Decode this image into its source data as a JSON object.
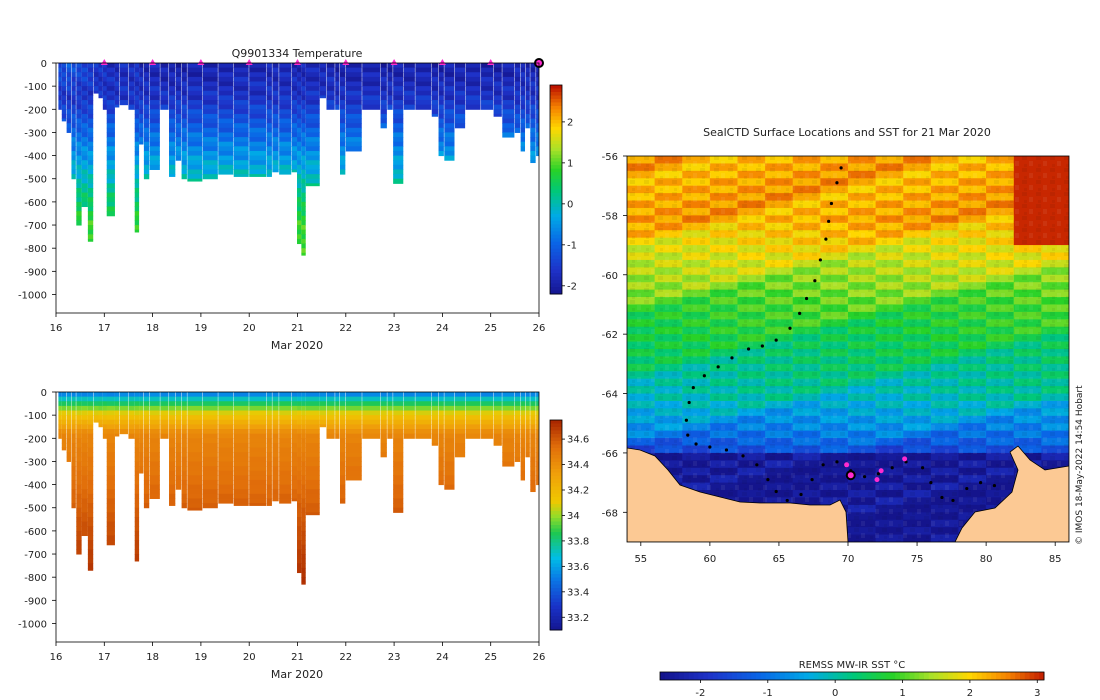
{
  "chart_data": [
    {
      "type": "heatmap",
      "id": "temperature",
      "title": "Q9901334  Temperature",
      "xlabel": "Mar 2020",
      "ylabel": "",
      "xlim": [
        16,
        26
      ],
      "ylim": [
        -1080,
        0
      ],
      "xticks": [
        16,
        17,
        18,
        19,
        20,
        21,
        22,
        23,
        24,
        25,
        26
      ],
      "yticks": [
        0,
        -100,
        -200,
        -300,
        -400,
        -500,
        -600,
        -700,
        -800,
        -900,
        -1000
      ],
      "colorbar": {
        "min": -2.2,
        "max": 2.9,
        "ticks": [
          -2,
          -1,
          0,
          1,
          2
        ]
      },
      "markers_x": [
        17,
        18,
        19,
        20,
        21,
        22,
        23,
        24,
        25,
        26
      ],
      "profiles": [
        {
          "x": 16.05,
          "w": 0.06,
          "bottom": -200,
          "surface": -1.2
        },
        {
          "x": 16.12,
          "w": 0.08,
          "bottom": -250,
          "surface": -1.2
        },
        {
          "x": 16.22,
          "w": 0.08,
          "bottom": -300,
          "surface": -1.1
        },
        {
          "x": 16.32,
          "w": 0.08,
          "bottom": -500,
          "surface": -1.2
        },
        {
          "x": 16.42,
          "w": 0.1,
          "bottom": -700,
          "surface": -1.3
        },
        {
          "x": 16.53,
          "w": 0.12,
          "bottom": -620,
          "surface": -1.3
        },
        {
          "x": 16.66,
          "w": 0.1,
          "bottom": -770,
          "surface": -1.4
        },
        {
          "x": 16.78,
          "w": 0.1,
          "bottom": -130,
          "surface": -1.6
        },
        {
          "x": 16.88,
          "w": 0.08,
          "bottom": -150,
          "surface": -1.6
        },
        {
          "x": 16.97,
          "w": 0.08,
          "bottom": -200,
          "surface": -1.6
        },
        {
          "x": 17.05,
          "w": 0.16,
          "bottom": -660,
          "surface": -1.7
        },
        {
          "x": 17.22,
          "w": 0.08,
          "bottom": -190,
          "surface": -1.7
        },
        {
          "x": 17.32,
          "w": 0.16,
          "bottom": -180,
          "surface": -1.7
        },
        {
          "x": 17.5,
          "w": 0.12,
          "bottom": -200,
          "surface": -1.7
        },
        {
          "x": 17.63,
          "w": 0.08,
          "bottom": -730,
          "surface": -1.6
        },
        {
          "x": 17.72,
          "w": 0.08,
          "bottom": -350,
          "surface": -1.8
        },
        {
          "x": 17.82,
          "w": 0.1,
          "bottom": -500,
          "surface": -1.8
        },
        {
          "x": 17.94,
          "w": 0.2,
          "bottom": -460,
          "surface": -1.8
        },
        {
          "x": 18.16,
          "w": 0.16,
          "bottom": -200,
          "surface": -1.9
        },
        {
          "x": 18.34,
          "w": 0.12,
          "bottom": -490,
          "surface": -1.9
        },
        {
          "x": 18.48,
          "w": 0.1,
          "bottom": -420,
          "surface": -1.9
        },
        {
          "x": 18.6,
          "w": 0.1,
          "bottom": -500,
          "surface": -1.9
        },
        {
          "x": 18.72,
          "w": 0.3,
          "bottom": -510,
          "surface": -1.9
        },
        {
          "x": 19.04,
          "w": 0.3,
          "bottom": -500,
          "surface": -1.9
        },
        {
          "x": 19.36,
          "w": 0.3,
          "bottom": -480,
          "surface": -1.9
        },
        {
          "x": 19.68,
          "w": 0.3,
          "bottom": -490,
          "surface": -1.8
        },
        {
          "x": 20.0,
          "w": 0.34,
          "bottom": -490,
          "surface": -1.8
        },
        {
          "x": 20.36,
          "w": 0.1,
          "bottom": -490,
          "surface": -1.8
        },
        {
          "x": 20.48,
          "w": 0.12,
          "bottom": -470,
          "surface": -1.8
        },
        {
          "x": 20.62,
          "w": 0.24,
          "bottom": -480,
          "surface": -1.8
        },
        {
          "x": 20.88,
          "w": 0.1,
          "bottom": -470,
          "surface": -1.8
        },
        {
          "x": 20.99,
          "w": 0.08,
          "bottom": -780,
          "surface": -1.8
        },
        {
          "x": 21.08,
          "w": 0.08,
          "bottom": -830,
          "surface": -1.8
        },
        {
          "x": 21.17,
          "w": 0.28,
          "bottom": -530,
          "surface": -1.8
        },
        {
          "x": 21.46,
          "w": 0.12,
          "bottom": -150,
          "surface": -1.8
        },
        {
          "x": 21.6,
          "w": 0.16,
          "bottom": -200,
          "surface": -1.8
        },
        {
          "x": 21.78,
          "w": 0.08,
          "bottom": -200,
          "surface": -1.9
        },
        {
          "x": 21.88,
          "w": 0.1,
          "bottom": -480,
          "surface": -1.9
        },
        {
          "x": 22.0,
          "w": 0.32,
          "bottom": -380,
          "surface": -1.9
        },
        {
          "x": 22.34,
          "w": 0.36,
          "bottom": -200,
          "surface": -1.9
        },
        {
          "x": 22.72,
          "w": 0.12,
          "bottom": -280,
          "surface": -1.9
        },
        {
          "x": 22.86,
          "w": 0.1,
          "bottom": -200,
          "surface": -1.9
        },
        {
          "x": 22.98,
          "w": 0.2,
          "bottom": -520,
          "surface": -1.9
        },
        {
          "x": 23.2,
          "w": 0.22,
          "bottom": -200,
          "surface": -1.9
        },
        {
          "x": 23.44,
          "w": 0.32,
          "bottom": -200,
          "surface": -1.9
        },
        {
          "x": 23.78,
          "w": 0.12,
          "bottom": -230,
          "surface": -1.9
        },
        {
          "x": 23.92,
          "w": 0.1,
          "bottom": -400,
          "surface": -1.9
        },
        {
          "x": 24.04,
          "w": 0.2,
          "bottom": -420,
          "surface": -1.9
        },
        {
          "x": 24.26,
          "w": 0.2,
          "bottom": -280,
          "surface": -1.9
        },
        {
          "x": 24.48,
          "w": 0.3,
          "bottom": -200,
          "surface": -1.9
        },
        {
          "x": 24.8,
          "w": 0.24,
          "bottom": -200,
          "surface": -1.9
        },
        {
          "x": 25.06,
          "w": 0.16,
          "bottom": -230,
          "surface": -1.9
        },
        {
          "x": 25.24,
          "w": 0.24,
          "bottom": -320,
          "surface": -1.9
        },
        {
          "x": 25.5,
          "w": 0.1,
          "bottom": -300,
          "surface": -1.8
        },
        {
          "x": 25.62,
          "w": 0.08,
          "bottom": -380,
          "surface": -1.8
        },
        {
          "x": 25.72,
          "w": 0.08,
          "bottom": -280,
          "surface": -1.8
        },
        {
          "x": 25.82,
          "w": 0.1,
          "bottom": -430,
          "surface": -1.8
        },
        {
          "x": 25.94,
          "w": 0.08,
          "bottom": -400,
          "surface": -1.8
        }
      ]
    },
    {
      "type": "heatmap",
      "id": "salinity",
      "title": "",
      "xlabel": "Mar 2020",
      "ylabel": "",
      "xlim": [
        16,
        26
      ],
      "ylim": [
        -1080,
        0
      ],
      "xticks": [
        16,
        17,
        18,
        19,
        20,
        21,
        22,
        23,
        24,
        25,
        26
      ],
      "yticks": [
        0,
        -100,
        -200,
        -300,
        -400,
        -500,
        -600,
        -700,
        -800,
        -900,
        -1000
      ],
      "colorbar": {
        "min": 33.1,
        "max": 34.75,
        "ticks": [
          33.2,
          33.4,
          33.6,
          33.8,
          34,
          34.2,
          34.4,
          34.6
        ]
      }
    },
    {
      "type": "heatmap",
      "id": "sst-map",
      "title": "SealCTD Surface Locations and SST for 21 Mar 2020",
      "xlabel": "",
      "ylabel": "",
      "xlim": [
        54,
        86
      ],
      "ylim": [
        -69,
        -56
      ],
      "xticks": [
        55,
        60,
        65,
        70,
        75,
        80,
        85
      ],
      "yticks": [
        -56,
        -58,
        -60,
        -62,
        -64,
        -66,
        -68
      ],
      "colorbar": {
        "label": "REMSS MW-IR SST °C",
        "min": -2.6,
        "max": 3.1,
        "ticks": [
          -2,
          -1,
          0,
          1,
          2,
          3
        ]
      },
      "track": [
        [
          69.5,
          -56.4
        ],
        [
          69.2,
          -56.9
        ],
        [
          68.8,
          -57.6
        ],
        [
          68.6,
          -58.2
        ],
        [
          68.4,
          -58.8
        ],
        [
          68.0,
          -59.5
        ],
        [
          67.6,
          -60.2
        ],
        [
          67.0,
          -60.8
        ],
        [
          66.5,
          -61.3
        ],
        [
          65.8,
          -61.8
        ],
        [
          64.8,
          -62.2
        ],
        [
          63.8,
          -62.4
        ],
        [
          62.8,
          -62.5
        ],
        [
          61.6,
          -62.8
        ],
        [
          60.6,
          -63.1
        ],
        [
          59.6,
          -63.4
        ],
        [
          58.8,
          -63.8
        ],
        [
          58.5,
          -64.3
        ],
        [
          58.3,
          -64.9
        ],
        [
          58.4,
          -65.4
        ],
        [
          59.0,
          -65.7
        ],
        [
          60.0,
          -65.8
        ],
        [
          61.2,
          -65.9
        ],
        [
          62.4,
          -66.1
        ],
        [
          63.4,
          -66.4
        ],
        [
          64.2,
          -66.9
        ],
        [
          64.8,
          -67.3
        ],
        [
          65.6,
          -67.6
        ],
        [
          66.6,
          -67.4
        ],
        [
          67.4,
          -66.9
        ],
        [
          68.2,
          -66.4
        ],
        [
          69.2,
          -66.3
        ],
        [
          70.2,
          -66.6
        ],
        [
          71.2,
          -66.8
        ],
        [
          72.2,
          -66.7
        ],
        [
          73.2,
          -66.5
        ],
        [
          74.2,
          -66.3
        ],
        [
          75.4,
          -66.5
        ],
        [
          76.0,
          -67.0
        ],
        [
          76.8,
          -67.5
        ],
        [
          77.6,
          -67.6
        ],
        [
          78.6,
          -67.2
        ],
        [
          79.6,
          -67.0
        ],
        [
          80.6,
          -67.1
        ]
      ],
      "highlights": [
        [
          70.2,
          -66.7
        ],
        [
          72.1,
          -66.9
        ],
        [
          72.4,
          -66.6
        ],
        [
          74.1,
          -66.2
        ],
        [
          69.9,
          -66.4
        ]
      ],
      "current_position": [
        70.2,
        -66.75
      ]
    }
  ],
  "watermark": "© IMOS 18-May-2022 14:54 Hobart"
}
